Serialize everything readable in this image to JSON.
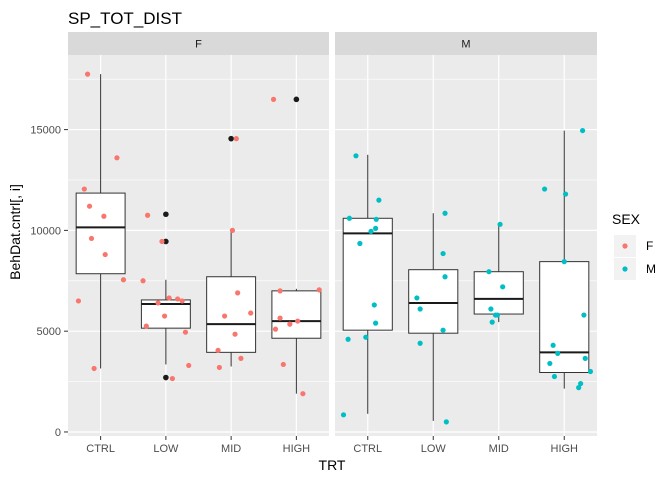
{
  "chart_data": {
    "type": "boxplot",
    "title": "SP_TOT_DIST",
    "xlabel": "TRT",
    "ylabel": "BehDat.cntrl[, i]",
    "ylim": [
      -200,
      18700
    ],
    "yticks": [
      0,
      5000,
      10000,
      15000
    ],
    "ytick_labels": [
      "0",
      "5000",
      "10000",
      "15000"
    ],
    "categories": [
      "CTRL",
      "LOW",
      "MID",
      "HIGH"
    ],
    "grid": true,
    "legend": {
      "title": "SEX",
      "position": "right",
      "entries": [
        {
          "label": "F",
          "color": "#F8766D"
        },
        {
          "label": "M",
          "color": "#00BFC4"
        }
      ]
    },
    "panels": [
      {
        "strip": "F",
        "point_color": "#F8766D",
        "boxes": [
          {
            "category": "CTRL",
            "whisker_low": 3150,
            "q1": 7850,
            "median": 10150,
            "q3": 11850,
            "whisker_high": 17750,
            "outliers": []
          },
          {
            "category": "LOW",
            "whisker_low": 3350,
            "q1": 5150,
            "median": 6350,
            "q3": 6550,
            "whisker_high": 7550,
            "outliers": [
              2700,
              9450,
              10800
            ]
          },
          {
            "category": "MID",
            "whisker_low": 3250,
            "q1": 3950,
            "median": 5350,
            "q3": 7700,
            "whisker_high": 10000,
            "outliers": [
              14550
            ]
          },
          {
            "category": "HIGH",
            "whisker_low": 1900,
            "q1": 4650,
            "median": 5500,
            "q3": 7000,
            "whisker_high": 7100,
            "outliers": [
              16500
            ]
          }
        ],
        "points": {
          "CTRL": [
            [
              -0.34,
              6500
            ],
            [
              -0.25,
              12050
            ],
            [
              -0.2,
              17750
            ],
            [
              -0.17,
              11200
            ],
            [
              -0.14,
              9600
            ],
            [
              -0.1,
              3150
            ],
            [
              0.05,
              10700
            ],
            [
              0.07,
              8800
            ],
            [
              0.25,
              13600
            ],
            [
              0.35,
              7550
            ]
          ],
          "LOW": [
            [
              -0.35,
              7500
            ],
            [
              -0.3,
              5250
            ],
            [
              -0.28,
              10750
            ],
            [
              -0.12,
              6400
            ],
            [
              -0.06,
              9450
            ],
            [
              -0.02,
              5750
            ],
            [
              0.05,
              6650
            ],
            [
              0.1,
              2650
            ],
            [
              0.18,
              6600
            ],
            [
              0.25,
              6500
            ],
            [
              0.3,
              4950
            ],
            [
              0.35,
              3300
            ]
          ],
          "MID": [
            [
              -0.2,
              4050
            ],
            [
              -0.18,
              3200
            ],
            [
              -0.1,
              5750
            ],
            [
              0.02,
              10000
            ],
            [
              0.06,
              4850
            ],
            [
              0.08,
              14550
            ],
            [
              0.1,
              6900
            ],
            [
              0.15,
              3650
            ],
            [
              0.3,
              5900
            ]
          ],
          "HIGH": [
            [
              -0.35,
              16500
            ],
            [
              -0.32,
              5100
            ],
            [
              -0.25,
              7000
            ],
            [
              -0.25,
              5650
            ],
            [
              -0.2,
              3350
            ],
            [
              -0.1,
              5350
            ],
            [
              0.02,
              5500
            ],
            [
              0.1,
              1900
            ],
            [
              0.35,
              7050
            ]
          ]
        }
      },
      {
        "strip": "M",
        "point_color": "#00BFC4",
        "boxes": [
          {
            "category": "CTRL",
            "whisker_low": 900,
            "q1": 5050,
            "median": 9850,
            "q3": 10600,
            "whisker_high": 13750,
            "outliers": []
          },
          {
            "category": "LOW",
            "whisker_low": 550,
            "q1": 4900,
            "median": 6400,
            "q3": 8050,
            "whisker_high": 10850,
            "outliers": []
          },
          {
            "category": "MID",
            "whisker_low": 5450,
            "q1": 5850,
            "median": 6600,
            "q3": 7950,
            "whisker_high": 10300,
            "outliers": []
          },
          {
            "category": "HIGH",
            "whisker_low": 2150,
            "q1": 2950,
            "median": 3950,
            "q3": 8450,
            "whisker_high": 14950,
            "outliers": []
          }
        ],
        "points": {
          "CTRL": [
            [
              -0.37,
              850
            ],
            [
              -0.3,
              4600
            ],
            [
              -0.28,
              10600
            ],
            [
              -0.18,
              13700
            ],
            [
              -0.12,
              9350
            ],
            [
              -0.03,
              4700
            ],
            [
              0.05,
              9950
            ],
            [
              0.12,
              10100
            ],
            [
              0.13,
              10550
            ],
            [
              0.12,
              5400
            ],
            [
              0.1,
              6300
            ],
            [
              0.17,
              11500
            ]
          ],
          "LOW": [
            [
              -0.25,
              6650
            ],
            [
              -0.2,
              6100
            ],
            [
              -0.2,
              4400
            ],
            [
              0.15,
              5050
            ],
            [
              0.15,
              8850
            ],
            [
              0.18,
              10850
            ],
            [
              0.18,
              7700
            ],
            [
              0.2,
              500
            ]
          ],
          "MID": [
            [
              -0.15,
              7950
            ],
            [
              -0.12,
              6100
            ],
            [
              -0.1,
              5450
            ],
            [
              -0.05,
              5800
            ],
            [
              -0.02,
              5800
            ],
            [
              0.02,
              10300
            ],
            [
              0.06,
              7200
            ]
          ],
          "HIGH": [
            [
              -0.3,
              12050
            ],
            [
              -0.22,
              3400
            ],
            [
              -0.17,
              4300
            ],
            [
              -0.15,
              2750
            ],
            [
              -0.1,
              3900
            ],
            [
              0.0,
              8450
            ],
            [
              0.02,
              11800
            ],
            [
              0.22,
              2200
            ],
            [
              0.25,
              2400
            ],
            [
              0.28,
              14950
            ],
            [
              0.3,
              5800
            ],
            [
              0.32,
              3650
            ],
            [
              0.4,
              3000
            ]
          ]
        }
      }
    ]
  }
}
